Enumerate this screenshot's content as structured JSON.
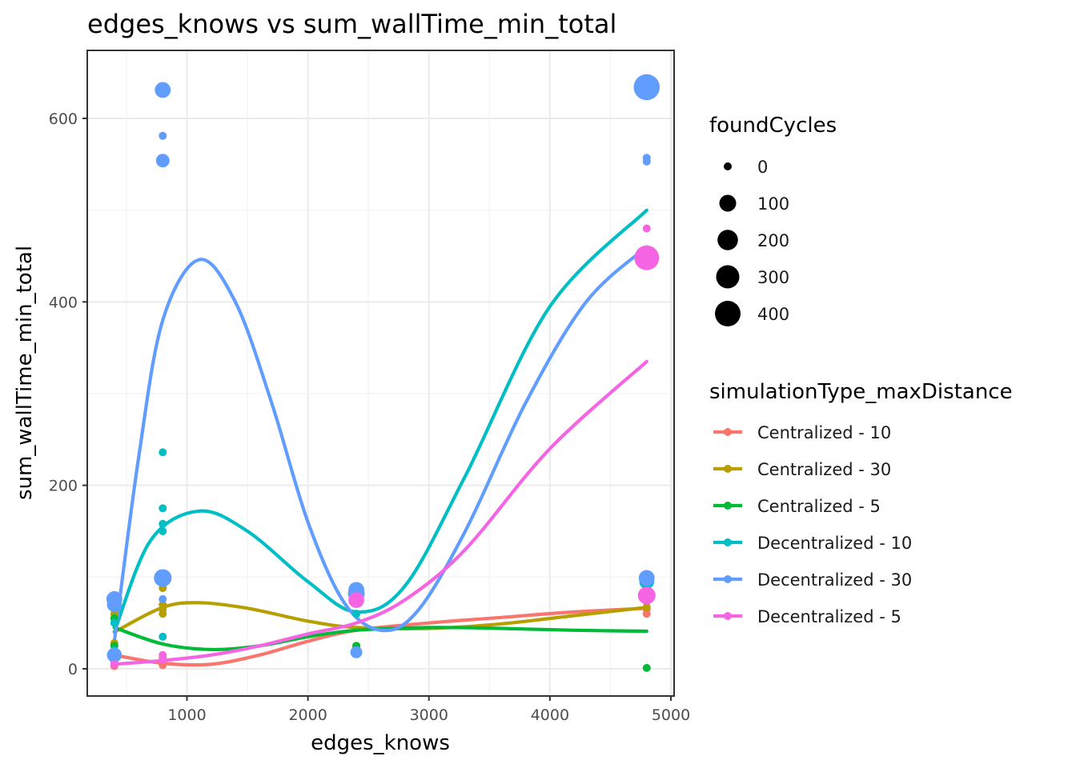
{
  "chart_data": {
    "type": "scatter",
    "title": "edges_knows  vs  sum_wallTime_min_total",
    "xlabel": "edges_knows",
    "ylabel": "sum_wallTime_min_total",
    "xlim": [
      200,
      5000
    ],
    "ylim": [
      -30,
      670
    ],
    "x_ticks": [
      1000,
      2000,
      3000,
      4000,
      5000
    ],
    "y_ticks": [
      0,
      200,
      400,
      600
    ],
    "grid": true,
    "legend_position": "right",
    "size_legend": {
      "title": "foundCycles",
      "entries": [
        {
          "label": "0",
          "value": 0
        },
        {
          "label": "100",
          "value": 100
        },
        {
          "label": "200",
          "value": 200
        },
        {
          "label": "300",
          "value": 300
        },
        {
          "label": "400",
          "value": 400
        }
      ]
    },
    "color_legend_title": "simulationType_maxDistance",
    "series": [
      {
        "name": "Centralized - 10",
        "color": "#F8766D",
        "points": [
          {
            "x": 400,
            "y": 3,
            "size": 0
          },
          {
            "x": 400,
            "y": 8,
            "size": 0
          },
          {
            "x": 400,
            "y": 15,
            "size": 0
          },
          {
            "x": 800,
            "y": 4,
            "size": 0
          },
          {
            "x": 800,
            "y": 8,
            "size": 0
          },
          {
            "x": 800,
            "y": 12,
            "size": 0
          },
          {
            "x": 2400,
            "y": 20,
            "size": 0
          },
          {
            "x": 2400,
            "y": 25,
            "size": 0
          },
          {
            "x": 4800,
            "y": 60,
            "size": 0
          },
          {
            "x": 4800,
            "y": 65,
            "size": 0
          }
        ],
        "smooth": [
          {
            "x": 400,
            "y": 15
          },
          {
            "x": 800,
            "y": 6
          },
          {
            "x": 1200,
            "y": 5
          },
          {
            "x": 1600,
            "y": 15
          },
          {
            "x": 2000,
            "y": 30
          },
          {
            "x": 2400,
            "y": 42
          },
          {
            "x": 3000,
            "y": 50
          },
          {
            "x": 3600,
            "y": 56
          },
          {
            "x": 4200,
            "y": 62
          },
          {
            "x": 4800,
            "y": 66
          }
        ]
      },
      {
        "name": "Centralized - 30",
        "color": "#B79F00",
        "points": [
          {
            "x": 400,
            "y": 28,
            "size": 0
          },
          {
            "x": 400,
            "y": 60,
            "size": 0
          },
          {
            "x": 800,
            "y": 60,
            "size": 0
          },
          {
            "x": 800,
            "y": 65,
            "size": 0
          },
          {
            "x": 800,
            "y": 70,
            "size": 0
          },
          {
            "x": 800,
            "y": 88,
            "size": 0
          },
          {
            "x": 2400,
            "y": 25,
            "size": 0
          },
          {
            "x": 4800,
            "y": 67,
            "size": 0
          },
          {
            "x": 4800,
            "y": 73,
            "size": 0
          }
        ],
        "smooth": [
          {
            "x": 400,
            "y": 40
          },
          {
            "x": 800,
            "y": 67
          },
          {
            "x": 1100,
            "y": 72
          },
          {
            "x": 1500,
            "y": 66
          },
          {
            "x": 2000,
            "y": 52
          },
          {
            "x": 2400,
            "y": 45
          },
          {
            "x": 3000,
            "y": 44
          },
          {
            "x": 3600,
            "y": 49
          },
          {
            "x": 4200,
            "y": 58
          },
          {
            "x": 4800,
            "y": 67
          }
        ]
      },
      {
        "name": "Centralized - 5",
        "color": "#00BA38",
        "points": [
          {
            "x": 400,
            "y": 25,
            "size": 0
          },
          {
            "x": 400,
            "y": 55,
            "size": 0
          },
          {
            "x": 2400,
            "y": 25,
            "size": 0
          },
          {
            "x": 2400,
            "y": 60,
            "size": 0
          },
          {
            "x": 4800,
            "y": 1,
            "size": 0
          }
        ],
        "smooth": [
          {
            "x": 400,
            "y": 45
          },
          {
            "x": 800,
            "y": 27
          },
          {
            "x": 1200,
            "y": 21
          },
          {
            "x": 1600,
            "y": 25
          },
          {
            "x": 2000,
            "y": 35
          },
          {
            "x": 2400,
            "y": 42
          },
          {
            "x": 3000,
            "y": 45
          },
          {
            "x": 3600,
            "y": 44
          },
          {
            "x": 4200,
            "y": 42
          },
          {
            "x": 4800,
            "y": 41
          }
        ]
      },
      {
        "name": "Decentralized - 10",
        "color": "#00BFC4",
        "points": [
          {
            "x": 400,
            "y": 20,
            "size": 0
          },
          {
            "x": 400,
            "y": 50,
            "size": 0
          },
          {
            "x": 800,
            "y": 35,
            "size": 0
          },
          {
            "x": 800,
            "y": 150,
            "size": 0
          },
          {
            "x": 800,
            "y": 158,
            "size": 0
          },
          {
            "x": 800,
            "y": 175,
            "size": 0
          },
          {
            "x": 800,
            "y": 236,
            "size": 0
          },
          {
            "x": 2400,
            "y": 60,
            "size": 0
          },
          {
            "x": 4800,
            "y": 95,
            "size": 60
          },
          {
            "x": 4800,
            "y": 636,
            "size": 220
          }
        ],
        "smooth": [
          {
            "x": 400,
            "y": 40
          },
          {
            "x": 700,
            "y": 140
          },
          {
            "x": 1100,
            "y": 172
          },
          {
            "x": 1500,
            "y": 150
          },
          {
            "x": 2000,
            "y": 95
          },
          {
            "x": 2400,
            "y": 62
          },
          {
            "x": 2800,
            "y": 90
          },
          {
            "x": 3300,
            "y": 210
          },
          {
            "x": 4000,
            "y": 395
          },
          {
            "x": 4800,
            "y": 500
          }
        ]
      },
      {
        "name": "Decentralized - 30",
        "color": "#619CFF",
        "points": [
          {
            "x": 400,
            "y": 15,
            "size": 60
          },
          {
            "x": 400,
            "y": 70,
            "size": 60
          },
          {
            "x": 400,
            "y": 76,
            "size": 80
          },
          {
            "x": 800,
            "y": 76,
            "size": 0
          },
          {
            "x": 800,
            "y": 99,
            "size": 120
          },
          {
            "x": 800,
            "y": 554,
            "size": 40
          },
          {
            "x": 800,
            "y": 581,
            "size": 0
          },
          {
            "x": 800,
            "y": 631,
            "size": 80
          },
          {
            "x": 2400,
            "y": 18,
            "size": 20
          },
          {
            "x": 2400,
            "y": 82,
            "size": 100
          },
          {
            "x": 2400,
            "y": 86,
            "size": 80
          },
          {
            "x": 4800,
            "y": 99,
            "size": 80
          },
          {
            "x": 4800,
            "y": 553,
            "size": 0
          },
          {
            "x": 4800,
            "y": 557,
            "size": 0
          },
          {
            "x": 4800,
            "y": 634,
            "size": 420
          }
        ],
        "smooth": [
          {
            "x": 400,
            "y": 30
          },
          {
            "x": 600,
            "y": 230
          },
          {
            "x": 800,
            "y": 380
          },
          {
            "x": 1100,
            "y": 446
          },
          {
            "x": 1400,
            "y": 400
          },
          {
            "x": 1700,
            "y": 290
          },
          {
            "x": 2000,
            "y": 160
          },
          {
            "x": 2300,
            "y": 72
          },
          {
            "x": 2600,
            "y": 42
          },
          {
            "x": 2900,
            "y": 62
          },
          {
            "x": 3300,
            "y": 150
          },
          {
            "x": 3800,
            "y": 290
          },
          {
            "x": 4300,
            "y": 400
          },
          {
            "x": 4800,
            "y": 460
          }
        ]
      },
      {
        "name": "Decentralized - 5",
        "color": "#F564E3",
        "points": [
          {
            "x": 400,
            "y": 5,
            "size": 0
          },
          {
            "x": 800,
            "y": 10,
            "size": 0
          },
          {
            "x": 800,
            "y": 15,
            "size": 0
          },
          {
            "x": 2400,
            "y": 75,
            "size": 80
          },
          {
            "x": 4800,
            "y": 80,
            "size": 120
          },
          {
            "x": 4800,
            "y": 448,
            "size": 360
          },
          {
            "x": 4800,
            "y": 480,
            "size": 0
          }
        ],
        "smooth": [
          {
            "x": 400,
            "y": 5
          },
          {
            "x": 800,
            "y": 9
          },
          {
            "x": 1200,
            "y": 15
          },
          {
            "x": 1600,
            "y": 25
          },
          {
            "x": 2000,
            "y": 38
          },
          {
            "x": 2400,
            "y": 50
          },
          {
            "x": 2800,
            "y": 75
          },
          {
            "x": 3300,
            "y": 130
          },
          {
            "x": 4000,
            "y": 240
          },
          {
            "x": 4800,
            "y": 335
          }
        ]
      }
    ]
  }
}
